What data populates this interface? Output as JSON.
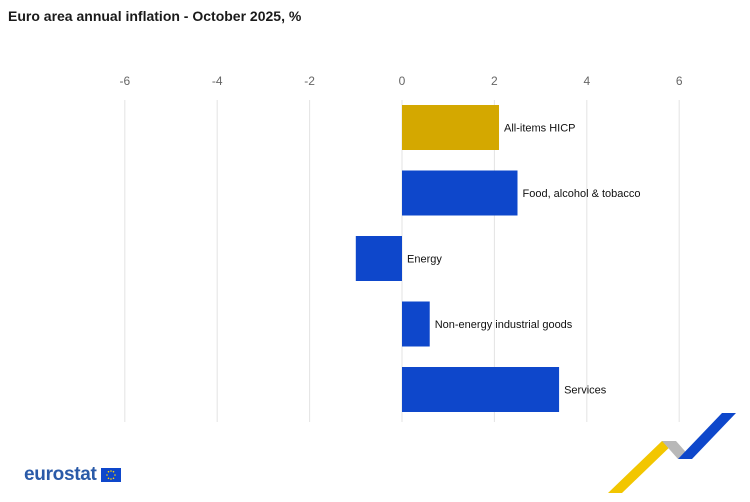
{
  "title": "Euro area annual inflation - October 2025, %",
  "logo": {
    "text": "eurostat"
  },
  "colors": {
    "highlight": "#d4a800",
    "bar": "#0e47cb",
    "grid": "#e3e3e3"
  },
  "chart_data": {
    "type": "bar",
    "orientation": "horizontal",
    "title": "Euro area annual inflation - October 2025, %",
    "xlim": [
      -6,
      6
    ],
    "xticks": [
      "-6",
      "-4",
      "-2",
      "0",
      "2",
      "4",
      "6"
    ],
    "grid": true,
    "categories": [
      "All-items HICP",
      "Food, alcohol & tobacco",
      "Energy",
      "Non-energy industrial goods",
      "Services"
    ],
    "values": [
      2.1,
      2.5,
      -1.0,
      0.6,
      3.4
    ],
    "bar_colors": [
      "#d4a800",
      "#0e47cb",
      "#0e47cb",
      "#0e47cb",
      "#0e47cb"
    ]
  }
}
